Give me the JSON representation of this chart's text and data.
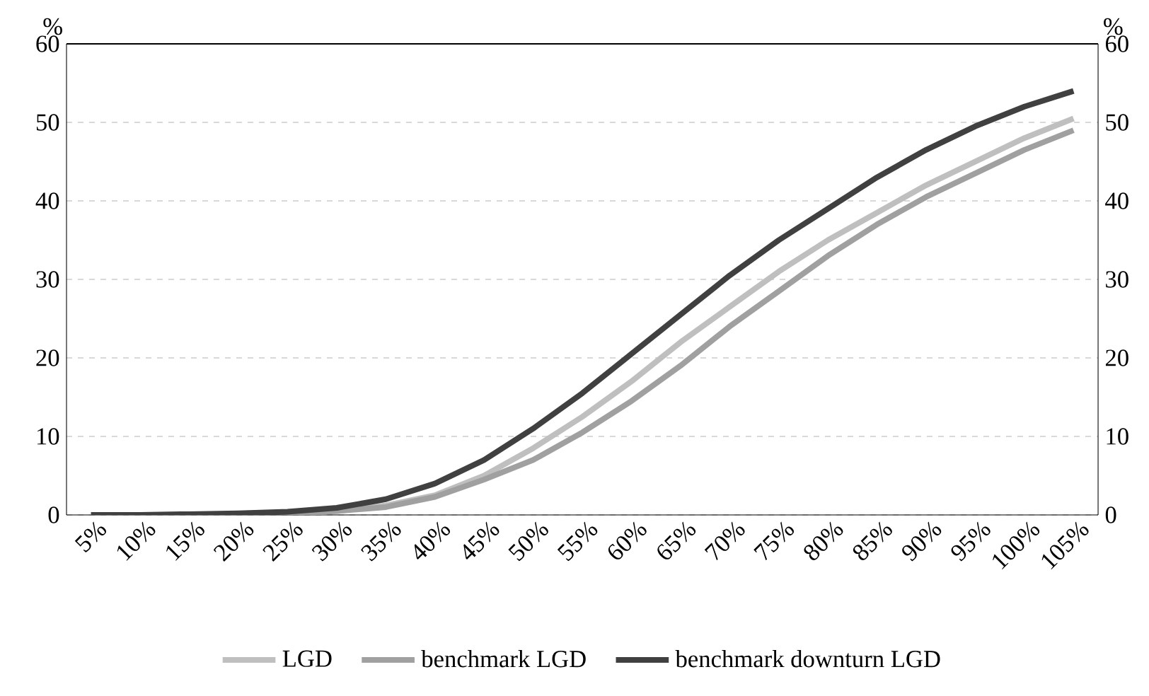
{
  "chart_data": {
    "type": "line",
    "categories": [
      "5%",
      "10%",
      "15%",
      "20%",
      "25%",
      "30%",
      "35%",
      "40%",
      "45%",
      "50%",
      "55%",
      "60%",
      "65%",
      "70%",
      "75%",
      "80%",
      "85%",
      "90%",
      "95%",
      "100%",
      "105%"
    ],
    "series": [
      {
        "name": "LGD",
        "color": "#bfbfbf",
        "values": [
          0,
          0,
          0,
          0.1,
          0.2,
          0.5,
          1.2,
          2.5,
          5,
          8.5,
          12.5,
          17,
          22,
          26.5,
          31,
          35,
          38.5,
          42,
          45,
          48,
          50.5
        ]
      },
      {
        "name": "benchmark LGD",
        "color": "#a0a0a0",
        "values": [
          0,
          0,
          0,
          0.1,
          0.2,
          0.5,
          1,
          2.3,
          4.5,
          7,
          10.5,
          14.5,
          19,
          24,
          28.5,
          33,
          37,
          40.5,
          43.5,
          46.5,
          49
        ]
      },
      {
        "name": "benchmark downturn LGD",
        "color": "#404040",
        "values": [
          0,
          0,
          0.1,
          0.2,
          0.4,
          0.9,
          2,
          4,
          7,
          11,
          15.5,
          20.5,
          25.5,
          30.5,
          35,
          39,
          43,
          46.5,
          49.5,
          52,
          54
        ]
      }
    ],
    "ylabel": "%",
    "y2label": "%",
    "ylim": [
      0,
      60
    ],
    "yticks": [
      0,
      10,
      20,
      30,
      40,
      50,
      60
    ],
    "y2lim": [
      0,
      60
    ],
    "y2ticks": [
      0,
      10,
      20,
      30,
      40,
      50,
      60
    ],
    "grid": "y",
    "legend": "bottom",
    "marker": "none",
    "line_style": "solid"
  }
}
